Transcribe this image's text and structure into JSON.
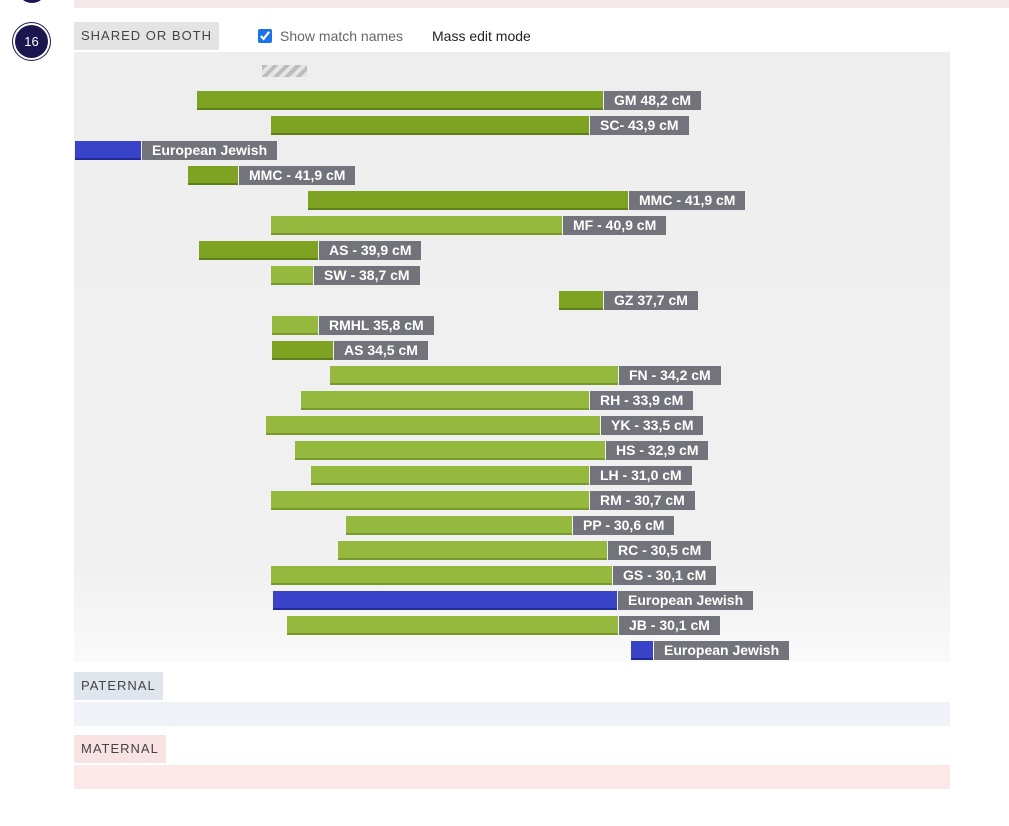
{
  "chromosome": {
    "number": "16"
  },
  "tabs": {
    "shared": "SHARED OR BOTH",
    "paternal": "PATERNAL",
    "maternal": "MATERNAL"
  },
  "controls": {
    "show_match_names": "Show match names",
    "show_match_names_checked": true,
    "mass_edit_mode": "Mass edit mode"
  },
  "colors": {
    "match_green_dark": "#7ea323",
    "match_green_light": "#95b83f",
    "ethnicity_blue": "#3843c8",
    "label_gray": "#73737b"
  },
  "segments": [
    {
      "label": "GM 48,2 cM",
      "kind": "dark"
    },
    {
      "label": "SC- 43,9 cM",
      "kind": "dark"
    },
    {
      "label": "European Jewish",
      "kind": "blue"
    },
    {
      "label": "MMC - 41,9 cM",
      "kind": "dark"
    },
    {
      "label": "MMC - 41,9 cM",
      "kind": "dark"
    },
    {
      "label": "MF - 40,9 cM",
      "kind": "light"
    },
    {
      "label": "AS - 39,9 cM",
      "kind": "dark"
    },
    {
      "label": "SW - 38,7 cM",
      "kind": "light"
    },
    {
      "label": "GZ 37,7 cM",
      "kind": "dark"
    },
    {
      "label": "RMHL 35,8 cM",
      "kind": "light"
    },
    {
      "label": "AS 34,5 cM",
      "kind": "dark"
    },
    {
      "label": "FN - 34,2 cM",
      "kind": "light"
    },
    {
      "label": "RH - 33,9 cM",
      "kind": "light"
    },
    {
      "label": "YK - 33,5 cM",
      "kind": "light"
    },
    {
      "label": "HS - 32,9 cM",
      "kind": "light"
    },
    {
      "label": "LH - 31,0 cM",
      "kind": "light"
    },
    {
      "label": "RM - 30,7 cM",
      "kind": "light"
    },
    {
      "label": "PP - 30,6 cM",
      "kind": "light"
    },
    {
      "label": "RC - 30,5 cM",
      "kind": "light"
    },
    {
      "label": "GS - 30,1 cM",
      "kind": "light"
    },
    {
      "label": "European Jewish",
      "kind": "blue"
    },
    {
      "label": "JB - 30,1 cM",
      "kind": "light"
    },
    {
      "label": "European Jewish",
      "kind": "blue"
    }
  ]
}
